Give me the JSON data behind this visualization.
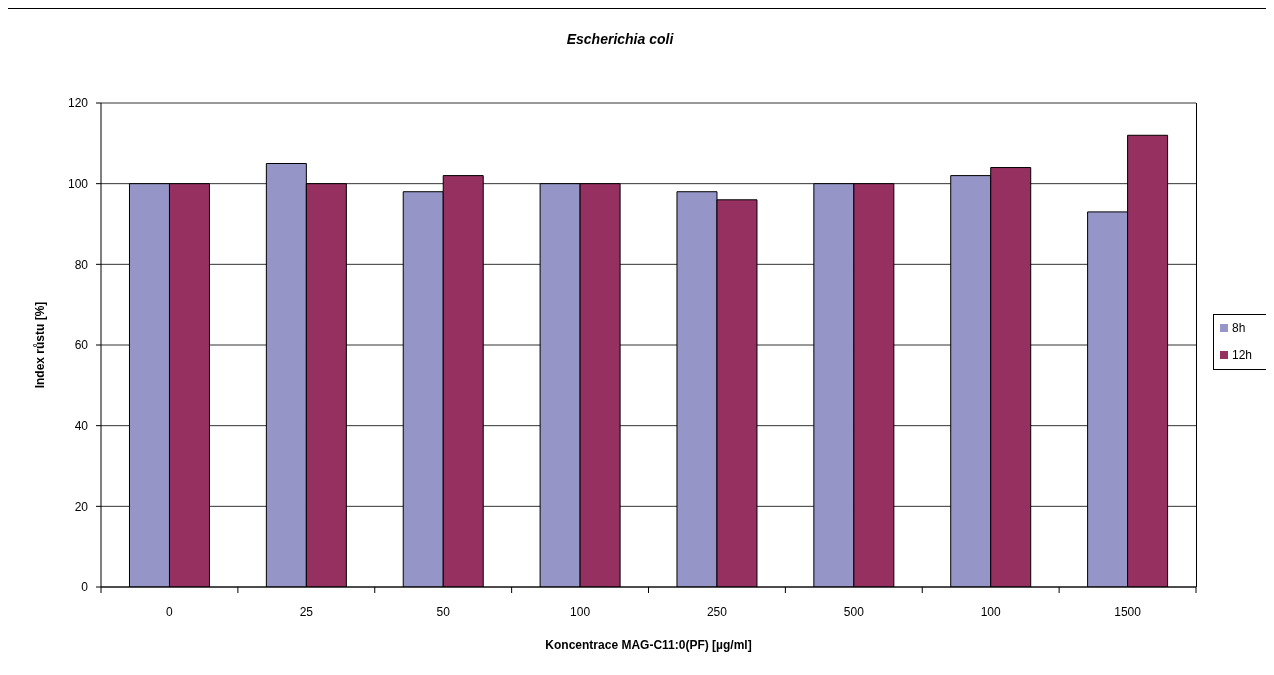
{
  "chart_data": {
    "type": "bar",
    "title": "Escherichia coli",
    "xlabel": "Koncentrace MAG-C11:0(PF) [µg/ml]",
    "ylabel": "Index růstu [%]",
    "categories": [
      "0",
      "25",
      "50",
      "100",
      "250",
      "500",
      "100",
      "1500"
    ],
    "series": [
      {
        "name": "8h",
        "color": "#9595c8",
        "values": [
          100,
          105,
          98,
          100,
          98,
          100,
          102,
          93
        ]
      },
      {
        "name": "12h",
        "color": "#963061",
        "values": [
          100,
          100,
          102,
          100,
          96,
          100,
          104,
          112
        ]
      }
    ],
    "ylim": [
      0,
      120
    ],
    "yticks": [
      0,
      20,
      40,
      60,
      80,
      100,
      120
    ],
    "grid": "y",
    "legend": "right"
  }
}
